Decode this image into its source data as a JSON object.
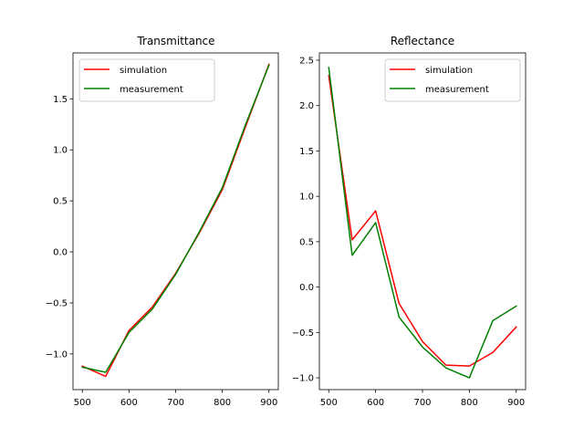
{
  "chart_data": [
    {
      "type": "line",
      "title": "Transmittance",
      "xlabel": "",
      "ylabel": "",
      "x": [
        500,
        550,
        600,
        650,
        700,
        750,
        800,
        850,
        900
      ],
      "xlim": [
        480,
        920
      ],
      "ylim": [
        -1.35,
        1.95
      ],
      "xticks": [
        500,
        600,
        700,
        800,
        900
      ],
      "yticks": [
        -1.0,
        -0.5,
        0.0,
        0.5,
        1.0,
        1.5
      ],
      "ytick_labels": [
        "−1.0",
        "−0.5",
        "0.0",
        "0.5",
        "1.0",
        "1.5"
      ],
      "legend": "upper left",
      "grid": false,
      "series": [
        {
          "name": "simulation",
          "color": "#ff0000",
          "values": [
            -1.12,
            -1.22,
            -0.77,
            -0.54,
            -0.21,
            0.18,
            0.61,
            1.23,
            1.84
          ]
        },
        {
          "name": "measurement",
          "color": "#008000",
          "values": [
            -1.13,
            -1.18,
            -0.79,
            -0.56,
            -0.22,
            0.19,
            0.63,
            1.25,
            1.83
          ]
        }
      ]
    },
    {
      "type": "line",
      "title": "Reflectance",
      "xlabel": "",
      "ylabel": "",
      "x": [
        500,
        550,
        600,
        650,
        700,
        750,
        800,
        850,
        900
      ],
      "xlim": [
        480,
        920
      ],
      "ylim": [
        -1.13,
        2.58
      ],
      "xticks": [
        500,
        600,
        700,
        800,
        900
      ],
      "yticks": [
        -1.0,
        -0.5,
        0.0,
        0.5,
        1.0,
        1.5,
        2.0,
        2.5
      ],
      "ytick_labels": [
        "−1.0",
        "−0.5",
        "0.0",
        "0.5",
        "1.0",
        "1.5",
        "2.0",
        "2.5"
      ],
      "legend": "upper right",
      "grid": false,
      "series": [
        {
          "name": "simulation",
          "color": "#ff0000",
          "values": [
            2.33,
            0.52,
            0.84,
            -0.18,
            -0.6,
            -0.86,
            -0.87,
            -0.72,
            -0.44
          ]
        },
        {
          "name": "measurement",
          "color": "#008000",
          "values": [
            2.42,
            0.35,
            0.71,
            -0.33,
            -0.66,
            -0.89,
            -1.0,
            -0.37,
            -0.21
          ]
        }
      ]
    }
  ]
}
